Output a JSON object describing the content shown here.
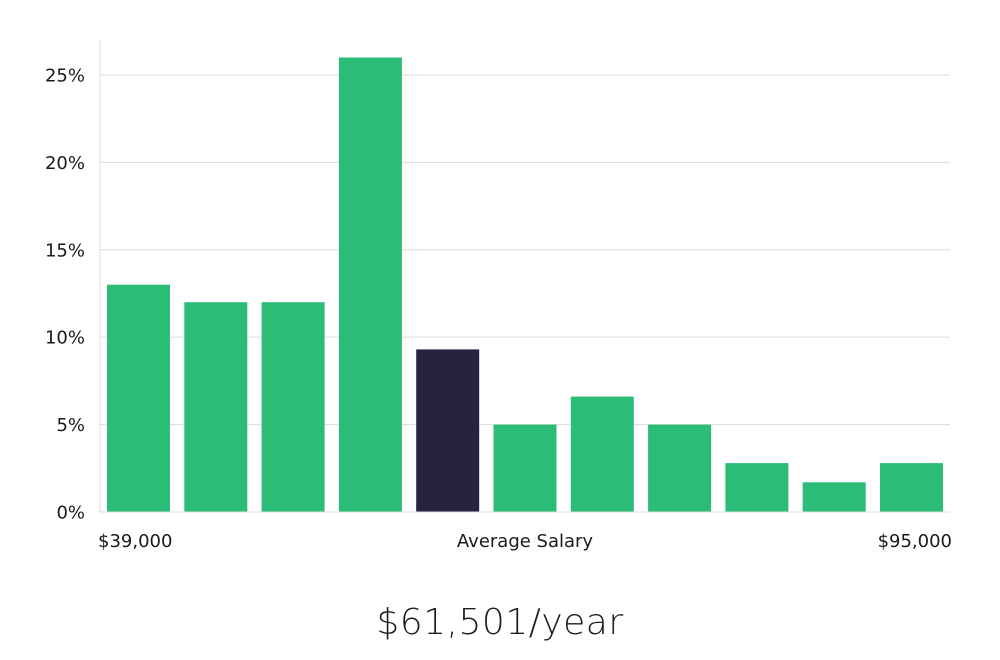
{
  "chart_data": {
    "type": "bar",
    "title": "",
    "xlabel": "",
    "ylabel": "",
    "ylim": [
      0,
      27
    ],
    "yticks": [
      0,
      5,
      10,
      15,
      20,
      25
    ],
    "ytick_suffix": "%",
    "grid": true,
    "values": [
      13,
      12,
      12,
      26,
      9.3,
      5,
      6.6,
      5,
      2.8,
      1.7,
      2.8
    ],
    "highlight_index": 4,
    "colors": {
      "bar": "#2bbd78",
      "highlight": "#27233f"
    },
    "x_labels": {
      "min": "$39,000",
      "center": "Average Salary",
      "max": "$95,000"
    }
  },
  "summary": {
    "average_salary": "$61,501/year"
  }
}
